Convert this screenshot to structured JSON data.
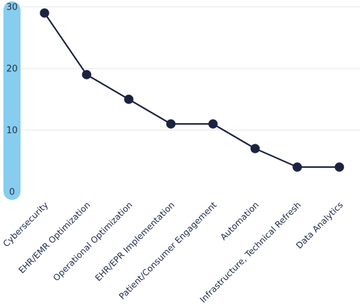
{
  "chart_data": {
    "type": "line",
    "categories": [
      "Cybersecurity",
      "EHR/EMR Optimization",
      "Operational Optimization",
      "EHR/EPR Implementation",
      "Patient/Consumer Engagement",
      "Automation",
      "Infrastructure, Technical Refresh",
      "Data Analytics"
    ],
    "series": [
      {
        "values": [
          29,
          19,
          15,
          11,
          11,
          7,
          4,
          4
        ]
      }
    ],
    "ylim": [
      0,
      30
    ],
    "yticks": [
      "0",
      "10",
      "20",
      "30"
    ],
    "grid": true,
    "colors": {
      "line": "#1b2340",
      "marker": "#1b2340",
      "axis_bar": "#86cdef",
      "grid": "#e6e6e6"
    }
  }
}
